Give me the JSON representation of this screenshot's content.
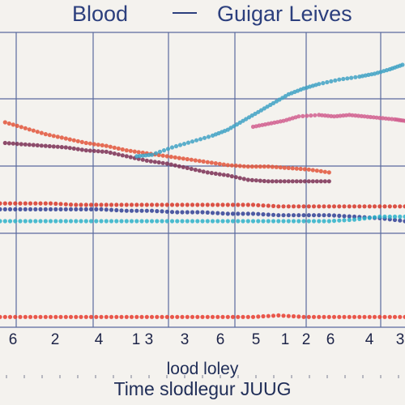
{
  "chart_data": {
    "type": "scatter",
    "title_left": "Blood",
    "title_right": "Guigar Leives",
    "xlabel_lines": [
      "lood loley",
      "Time  slodlegur JUUG"
    ],
    "ylabel": "",
    "x_tick_labels": [
      "6",
      "2",
      "4",
      "1 3",
      "3",
      "6",
      "5",
      "1",
      "2",
      "6",
      "4",
      "3"
    ],
    "grid": true,
    "legend": "none",
    "series": [
      {
        "color": "#e2553a",
        "points": [
          [
            0.2,
            6.9
          ],
          [
            1.0,
            6.5
          ],
          [
            1.8,
            6.1
          ],
          [
            2.6,
            5.8
          ],
          [
            3.4,
            5.5
          ],
          [
            4.2,
            5.3
          ],
          [
            5.0,
            5.0
          ],
          [
            5.8,
            4.8
          ],
          [
            6.6,
            4.6
          ],
          [
            7.4,
            4.4
          ],
          [
            8.2,
            4.2
          ],
          [
            9.0,
            4.0
          ],
          [
            9.8,
            3.9
          ],
          [
            10.6,
            3.9
          ],
          [
            11.4,
            3.8
          ],
          [
            12.2,
            3.7
          ],
          [
            13.0,
            3.5
          ]
        ]
      },
      {
        "color": "#7a2f53",
        "points": [
          [
            0.2,
            5.5
          ],
          [
            1.0,
            5.4
          ],
          [
            1.8,
            5.3
          ],
          [
            2.6,
            5.2
          ],
          [
            3.4,
            5.0
          ],
          [
            4.2,
            4.9
          ],
          [
            5.0,
            4.6
          ],
          [
            5.8,
            4.3
          ],
          [
            6.6,
            4.1
          ],
          [
            7.4,
            3.8
          ],
          [
            8.2,
            3.5
          ],
          [
            9.0,
            3.3
          ],
          [
            9.8,
            3.0
          ],
          [
            10.6,
            2.9
          ],
          [
            11.4,
            2.9
          ],
          [
            12.2,
            2.9
          ],
          [
            13.0,
            2.9
          ]
        ]
      },
      {
        "color": "#3fa2c4",
        "points": [
          [
            5.4,
            4.6
          ],
          [
            6.0,
            4.7
          ],
          [
            6.8,
            5.2
          ],
          [
            7.6,
            5.6
          ],
          [
            8.4,
            6.0
          ],
          [
            9.0,
            6.4
          ],
          [
            9.6,
            7.0
          ],
          [
            10.2,
            7.6
          ],
          [
            10.8,
            8.2
          ],
          [
            11.4,
            8.8
          ],
          [
            12.0,
            9.2
          ],
          [
            12.6,
            9.5
          ],
          [
            13.4,
            9.8
          ],
          [
            14.2,
            10.0
          ],
          [
            14.8,
            10.2
          ],
          [
            15.4,
            10.5
          ],
          [
            15.9,
            10.8
          ]
        ]
      },
      {
        "color": "#d1608f",
        "points": [
          [
            10.0,
            6.6
          ],
          [
            10.6,
            6.8
          ],
          [
            11.2,
            7.0
          ],
          [
            11.8,
            7.3
          ],
          [
            12.6,
            7.4
          ],
          [
            13.2,
            7.3
          ],
          [
            13.8,
            7.4
          ],
          [
            14.4,
            7.3
          ],
          [
            15.0,
            7.2
          ],
          [
            15.6,
            7.1
          ],
          [
            16.0,
            7.0
          ]
        ]
      },
      {
        "color": "#2f3f95",
        "points": [
          [
            0.0,
            1.0
          ],
          [
            1.0,
            1.0
          ],
          [
            2.0,
            1.0
          ],
          [
            3.0,
            1.0
          ],
          [
            4.0,
            1.0
          ],
          [
            5.0,
            0.9
          ],
          [
            6.0,
            0.9
          ],
          [
            7.0,
            0.8
          ],
          [
            8.0,
            0.8
          ],
          [
            9.0,
            0.7
          ],
          [
            10.0,
            0.7
          ],
          [
            11.0,
            0.6
          ],
          [
            12.0,
            0.6
          ],
          [
            13.0,
            0.6
          ],
          [
            14.0,
            0.5
          ],
          [
            15.0,
            0.4
          ],
          [
            16.0,
            0.2
          ]
        ]
      },
      {
        "color": "#2cb2c9",
        "points": [
          [
            0.0,
            0.2
          ],
          [
            1.0,
            0.2
          ],
          [
            2.0,
            0.2
          ],
          [
            3.0,
            0.2
          ],
          [
            4.0,
            0.2
          ],
          [
            5.0,
            0.2
          ],
          [
            6.0,
            0.2
          ],
          [
            7.0,
            0.2
          ],
          [
            8.0,
            0.2
          ],
          [
            9.0,
            0.2
          ],
          [
            10.0,
            0.2
          ],
          [
            11.0,
            0.2
          ],
          [
            12.0,
            0.2
          ],
          [
            13.0,
            0.2
          ],
          [
            14.0,
            0.3
          ],
          [
            15.0,
            0.5
          ],
          [
            16.0,
            0.5
          ]
        ]
      },
      {
        "color": "#d63628",
        "points": [
          [
            0.0,
            1.4
          ],
          [
            1.0,
            1.4
          ],
          [
            2.0,
            1.4
          ],
          [
            3.0,
            1.3
          ],
          [
            4.0,
            1.3
          ],
          [
            5.0,
            1.3
          ],
          [
            6.0,
            1.3
          ],
          [
            7.0,
            1.3
          ],
          [
            8.0,
            1.3
          ],
          [
            9.0,
            1.3
          ],
          [
            10.0,
            1.3
          ],
          [
            11.0,
            1.2
          ],
          [
            12.0,
            1.2
          ],
          [
            13.0,
            1.2
          ],
          [
            14.0,
            1.2
          ],
          [
            15.0,
            1.2
          ],
          [
            16.0,
            1.2
          ]
        ]
      },
      {
        "color": "#e63c2e",
        "points": [
          [
            0.0,
            -6.3
          ],
          [
            1.0,
            -6.3
          ],
          [
            2.0,
            -6.3
          ],
          [
            3.0,
            -6.3
          ],
          [
            4.0,
            -6.3
          ],
          [
            5.0,
            -6.3
          ],
          [
            6.0,
            -6.3
          ],
          [
            7.0,
            -6.3
          ],
          [
            8.0,
            -6.3
          ],
          [
            9.0,
            -6.3
          ],
          [
            10.0,
            -6.3
          ],
          [
            11.0,
            -6.2
          ],
          [
            12.0,
            -6.3
          ],
          [
            13.0,
            -6.3
          ],
          [
            14.0,
            -6.3
          ],
          [
            15.0,
            -6.3
          ],
          [
            16.0,
            -6.3
          ]
        ]
      }
    ],
    "ylim": [
      -7,
      13
    ],
    "xlim": [
      0,
      16
    ]
  }
}
